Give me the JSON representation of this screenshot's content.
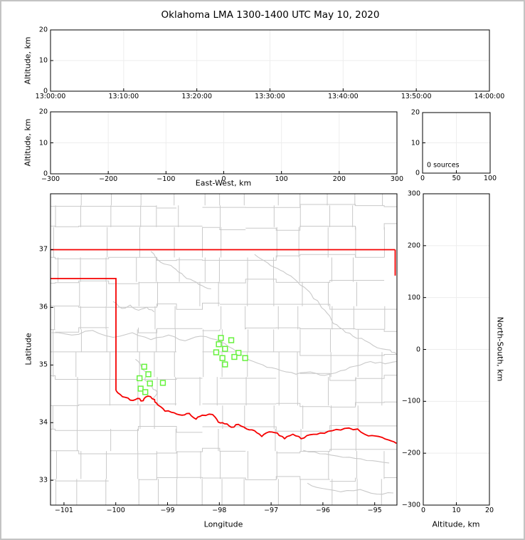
{
  "title": "Oklahoma LMA 1300-1400 UTC May 10, 2020",
  "colors": {
    "state_border": "#f50000",
    "county_lines": "#c9c9c9",
    "river_lines": "#c9c9c9",
    "station_marker": "#66f23d",
    "gridline": "#ededed",
    "axis": "#000000",
    "frame": "#c3c3c3",
    "background": "#ffffff"
  },
  "chart_data": [
    {
      "id": "time-altitude-panel",
      "type": "scatter",
      "points": [],
      "x": {
        "label": "",
        "lim": [
          0,
          60
        ],
        "ticks": [
          {
            "v": 0,
            "l": "13:00:00"
          },
          {
            "v": 10,
            "l": "13:10:00"
          },
          {
            "v": 20,
            "l": "13:20:00"
          },
          {
            "v": 30,
            "l": "13:30:00"
          },
          {
            "v": 40,
            "l": "13:40:00"
          },
          {
            "v": 50,
            "l": "13:50:00"
          },
          {
            "v": 60,
            "l": "14:00:00"
          }
        ],
        "grid": [
          10,
          20,
          30,
          40,
          50
        ]
      },
      "y": {
        "label": "Altitude, km",
        "lim": [
          0,
          20
        ],
        "ticks": [
          {
            "v": 0,
            "l": "0"
          },
          {
            "v": 10,
            "l": "10"
          },
          {
            "v": 20,
            "l": "20"
          }
        ],
        "grid": [
          10
        ]
      }
    },
    {
      "id": "eastwest-altitude-panel",
      "type": "scatter",
      "points": [],
      "x": {
        "label": "East-West, km",
        "lim": [
          -300,
          300
        ],
        "ticks": [
          {
            "v": -300,
            "l": "−300"
          },
          {
            "v": -200,
            "l": "−200"
          },
          {
            "v": -100,
            "l": "−100"
          },
          {
            "v": 0,
            "l": "0"
          },
          {
            "v": 100,
            "l": "100"
          },
          {
            "v": 200,
            "l": "200"
          },
          {
            "v": 300,
            "l": "300"
          }
        ],
        "grid": [
          -200,
          -100,
          0,
          100,
          200
        ]
      },
      "y": {
        "label": "Altitude, km",
        "lim": [
          0,
          20
        ],
        "ticks": [
          {
            "v": 0,
            "l": "0"
          },
          {
            "v": 10,
            "l": "10"
          },
          {
            "v": 20,
            "l": "20"
          }
        ],
        "grid": [
          10
        ]
      }
    },
    {
      "id": "altitude-histogram-panel",
      "type": "line",
      "points": [],
      "annotation": "0 sources",
      "x": {
        "label": "",
        "lim": [
          0,
          100
        ],
        "ticks": [
          {
            "v": 0,
            "l": "0"
          },
          {
            "v": 50,
            "l": "50"
          },
          {
            "v": 100,
            "l": "100"
          }
        ],
        "grid": [
          50
        ]
      },
      "y": {
        "label": "",
        "lim": [
          0,
          20
        ],
        "ticks": [
          {
            "v": 0,
            "l": "0"
          },
          {
            "v": 10,
            "l": "10"
          },
          {
            "v": 20,
            "l": "20"
          }
        ],
        "grid": [
          10
        ]
      }
    },
    {
      "id": "map-panel",
      "type": "scatter",
      "marker": "open-square",
      "stations": [
        [
          -97.97,
          35.47
        ],
        [
          -97.77,
          35.43
        ],
        [
          -98.01,
          35.36
        ],
        [
          -97.89,
          35.28
        ],
        [
          -98.06,
          35.22
        ],
        [
          -97.63,
          35.21
        ],
        [
          -97.94,
          35.12
        ],
        [
          -97.71,
          35.14
        ],
        [
          -97.5,
          35.12
        ],
        [
          -97.89,
          35.01
        ],
        [
          -99.45,
          34.97
        ],
        [
          -99.37,
          34.84
        ],
        [
          -99.54,
          34.77
        ],
        [
          -99.34,
          34.68
        ],
        [
          -99.09,
          34.69
        ],
        [
          -99.52,
          34.59
        ],
        [
          -99.43,
          34.53
        ]
      ],
      "x": {
        "label": "Longitude",
        "lim": [
          -101.26,
          -94.57
        ],
        "ticks": [
          {
            "v": -101,
            "l": "−101"
          },
          {
            "v": -100,
            "l": "−100"
          },
          {
            "v": -99,
            "l": "−99"
          },
          {
            "v": -98,
            "l": "−98"
          },
          {
            "v": -97,
            "l": "−97"
          },
          {
            "v": -96,
            "l": "−96"
          },
          {
            "v": -95,
            "l": "−95"
          }
        ],
        "grid": []
      },
      "y": {
        "label": "Latitude",
        "lim": [
          32.57,
          37.97
        ],
        "ticks": [
          {
            "v": 33,
            "l": "33"
          },
          {
            "v": 34,
            "l": "34"
          },
          {
            "v": 35,
            "l": "35"
          },
          {
            "v": 36,
            "l": "36"
          },
          {
            "v": 37,
            "l": "37"
          }
        ],
        "grid": []
      }
    },
    {
      "id": "northsouth-altitude-panel",
      "type": "scatter",
      "points": [],
      "x": {
        "label": "Altitude, km",
        "lim": [
          0,
          20
        ],
        "ticks": [
          {
            "v": 0,
            "l": "0"
          },
          {
            "v": 10,
            "l": "10"
          },
          {
            "v": 20,
            "l": "20"
          }
        ],
        "grid": [
          10
        ]
      },
      "y": {
        "label": "North-South, km",
        "lim": [
          -300,
          300
        ],
        "ticks": [
          {
            "v": 300,
            "l": "300"
          },
          {
            "v": 200,
            "l": "200"
          },
          {
            "v": 100,
            "l": "100"
          },
          {
            "v": 0,
            "l": "0"
          },
          {
            "v": -100,
            "l": "−100"
          },
          {
            "v": -200,
            "l": "−200"
          },
          {
            "v": -300,
            "l": "−300"
          }
        ],
        "grid": [
          -200,
          -100,
          0,
          100,
          200
        ]
      }
    }
  ],
  "geo": {
    "state_boundary": {
      "north_border": [
        [
          -101.26,
          37.0
        ],
        [
          -94.605,
          37.0
        ]
      ],
      "east_border": [
        [
          -94.605,
          37.0
        ],
        [
          -94.605,
          36.55
        ]
      ],
      "panhandle_border": [
        [
          -101.26,
          36.5
        ],
        [
          -99.996,
          36.5
        ],
        [
          -99.996,
          34.56
        ]
      ],
      "red_river_border": [
        [
          -99.996,
          34.56
        ],
        [
          -99.87,
          34.45
        ],
        [
          -99.72,
          34.39
        ],
        [
          -99.58,
          34.42
        ],
        [
          -99.47,
          34.38
        ],
        [
          -99.38,
          34.46
        ],
        [
          -99.25,
          34.4
        ],
        [
          -99.19,
          34.31
        ],
        [
          -99.05,
          34.2
        ],
        [
          -98.87,
          34.17
        ],
        [
          -98.72,
          34.13
        ],
        [
          -98.58,
          34.16
        ],
        [
          -98.45,
          34.06
        ],
        [
          -98.33,
          34.13
        ],
        [
          -98.13,
          34.14
        ],
        [
          -98.02,
          34.01
        ],
        [
          -97.9,
          33.98
        ],
        [
          -97.77,
          33.92
        ],
        [
          -97.63,
          33.97
        ],
        [
          -97.47,
          33.89
        ],
        [
          -97.32,
          33.86
        ],
        [
          -97.18,
          33.76
        ],
        [
          -97.04,
          33.84
        ],
        [
          -96.88,
          33.82
        ],
        [
          -96.74,
          33.72
        ],
        [
          -96.58,
          33.8
        ],
        [
          -96.42,
          33.72
        ],
        [
          -96.25,
          33.79
        ],
        [
          -96.05,
          33.82
        ],
        [
          -95.82,
          33.86
        ],
        [
          -95.58,
          33.9
        ],
        [
          -95.33,
          33.89
        ],
        [
          -95.12,
          33.77
        ],
        [
          -94.92,
          33.76
        ],
        [
          -94.73,
          33.7
        ],
        [
          -94.58,
          33.64
        ]
      ]
    },
    "rivers": [
      [
        [
          -99.32,
          36.97
        ],
        [
          -99.18,
          36.82
        ],
        [
          -99.0,
          36.74
        ],
        [
          -98.84,
          36.66
        ],
        [
          -98.68,
          36.54
        ],
        [
          -98.5,
          36.46
        ],
        [
          -98.34,
          36.38
        ],
        [
          -98.16,
          36.32
        ]
      ],
      [
        [
          -100.05,
          36.1
        ],
        [
          -99.88,
          35.98
        ],
        [
          -99.72,
          36.04
        ],
        [
          -99.56,
          35.95
        ],
        [
          -99.4,
          36.0
        ],
        [
          -99.26,
          35.92
        ]
      ],
      [
        [
          -97.32,
          36.92
        ],
        [
          -97.12,
          36.8
        ],
        [
          -96.95,
          36.7
        ],
        [
          -96.76,
          36.62
        ],
        [
          -96.56,
          36.5
        ],
        [
          -96.36,
          36.35
        ],
        [
          -96.22,
          36.22
        ],
        [
          -96.06,
          36.05
        ],
        [
          -95.92,
          35.9
        ],
        [
          -95.8,
          35.72
        ],
        [
          -95.62,
          35.62
        ],
        [
          -95.42,
          35.5
        ],
        [
          -95.18,
          35.42
        ],
        [
          -94.95,
          35.3
        ],
        [
          -94.7,
          35.26
        ],
        [
          -94.58,
          35.18
        ]
      ],
      [
        [
          -101.24,
          35.56
        ],
        [
          -100.85,
          35.52
        ],
        [
          -100.45,
          35.6
        ],
        [
          -100.05,
          35.48
        ],
        [
          -99.68,
          35.56
        ],
        [
          -99.32,
          35.44
        ],
        [
          -98.98,
          35.52
        ],
        [
          -98.66,
          35.42
        ],
        [
          -98.36,
          35.5
        ],
        [
          -98.06,
          35.44
        ],
        [
          -97.82,
          35.32
        ],
        [
          -97.58,
          35.18
        ],
        [
          -97.34,
          35.06
        ],
        [
          -97.08,
          34.96
        ],
        [
          -96.8,
          34.9
        ],
        [
          -96.52,
          34.84
        ],
        [
          -96.24,
          34.88
        ],
        [
          -95.96,
          34.82
        ],
        [
          -95.66,
          34.9
        ],
        [
          -95.38,
          34.98
        ],
        [
          -95.08,
          35.06
        ],
        [
          -94.8,
          35.02
        ],
        [
          -94.58,
          35.06
        ]
      ],
      [
        [
          -99.62,
          35.1
        ],
        [
          -99.5,
          34.96
        ],
        [
          -99.38,
          34.86
        ],
        [
          -99.44,
          34.74
        ],
        [
          -99.3,
          34.62
        ],
        [
          -99.2,
          34.52
        ],
        [
          -99.28,
          34.42
        ]
      ],
      [
        [
          -96.38,
          33.52
        ],
        [
          -96.06,
          33.46
        ],
        [
          -95.72,
          33.42
        ],
        [
          -95.38,
          33.38
        ],
        [
          -95.04,
          33.34
        ],
        [
          -94.72,
          33.3
        ]
      ],
      [
        [
          -96.3,
          32.95
        ],
        [
          -96.02,
          32.86
        ],
        [
          -95.66,
          32.8
        ],
        [
          -95.28,
          32.84
        ],
        [
          -94.96,
          32.76
        ],
        [
          -94.64,
          32.78
        ]
      ]
    ]
  }
}
